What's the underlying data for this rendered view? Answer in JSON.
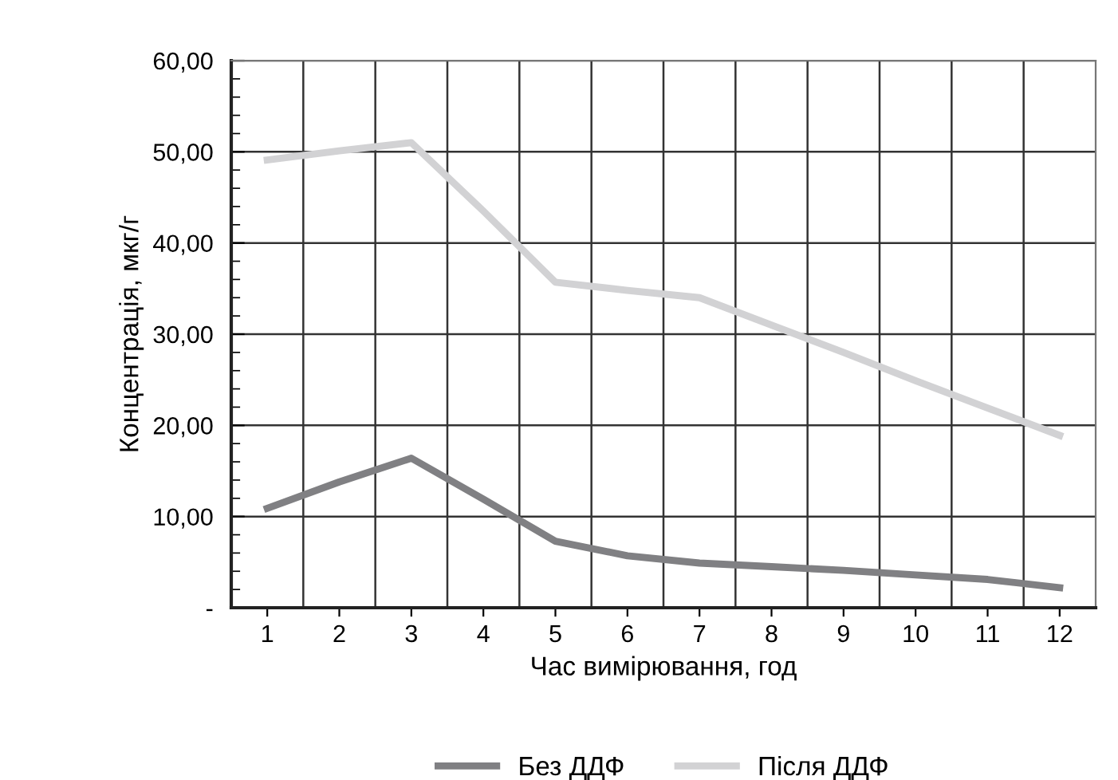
{
  "chart_data": {
    "type": "line",
    "xlabel": "Час вимірювання, год",
    "ylabel": "Концентрація, мкг/г",
    "categories": [
      "1",
      "2",
      "3",
      "4",
      "5",
      "6",
      "7",
      "8",
      "9",
      "10",
      "11",
      "12"
    ],
    "series": [
      {
        "name": "Без ДДФ",
        "color": "#808083",
        "values": [
          10.9,
          13.8,
          16.4,
          11.9,
          7.3,
          5.7,
          4.9,
          4.5,
          4.1,
          3.6,
          3.1,
          2.2
        ]
      },
      {
        "name": "Після ДДФ",
        "color": "#d2d2d4",
        "values": [
          49.1,
          50.1,
          51.0,
          43.5,
          35.7,
          34.8,
          34.0,
          31.0,
          28.0,
          24.9,
          21.9,
          18.9
        ]
      }
    ],
    "ylim": [
      0,
      60
    ],
    "yticks": [
      {
        "value": 0,
        "label": "-"
      },
      {
        "value": 10,
        "label": "10,00"
      },
      {
        "value": 20,
        "label": "20,00"
      },
      {
        "value": 30,
        "label": "30,00"
      },
      {
        "value": 40,
        "label": "40,00"
      },
      {
        "value": 50,
        "label": "50,00"
      },
      {
        "value": 60,
        "label": "60,00"
      }
    ],
    "grid": true,
    "legend": "bottom",
    "marker": "none",
    "line_style": "solid"
  }
}
